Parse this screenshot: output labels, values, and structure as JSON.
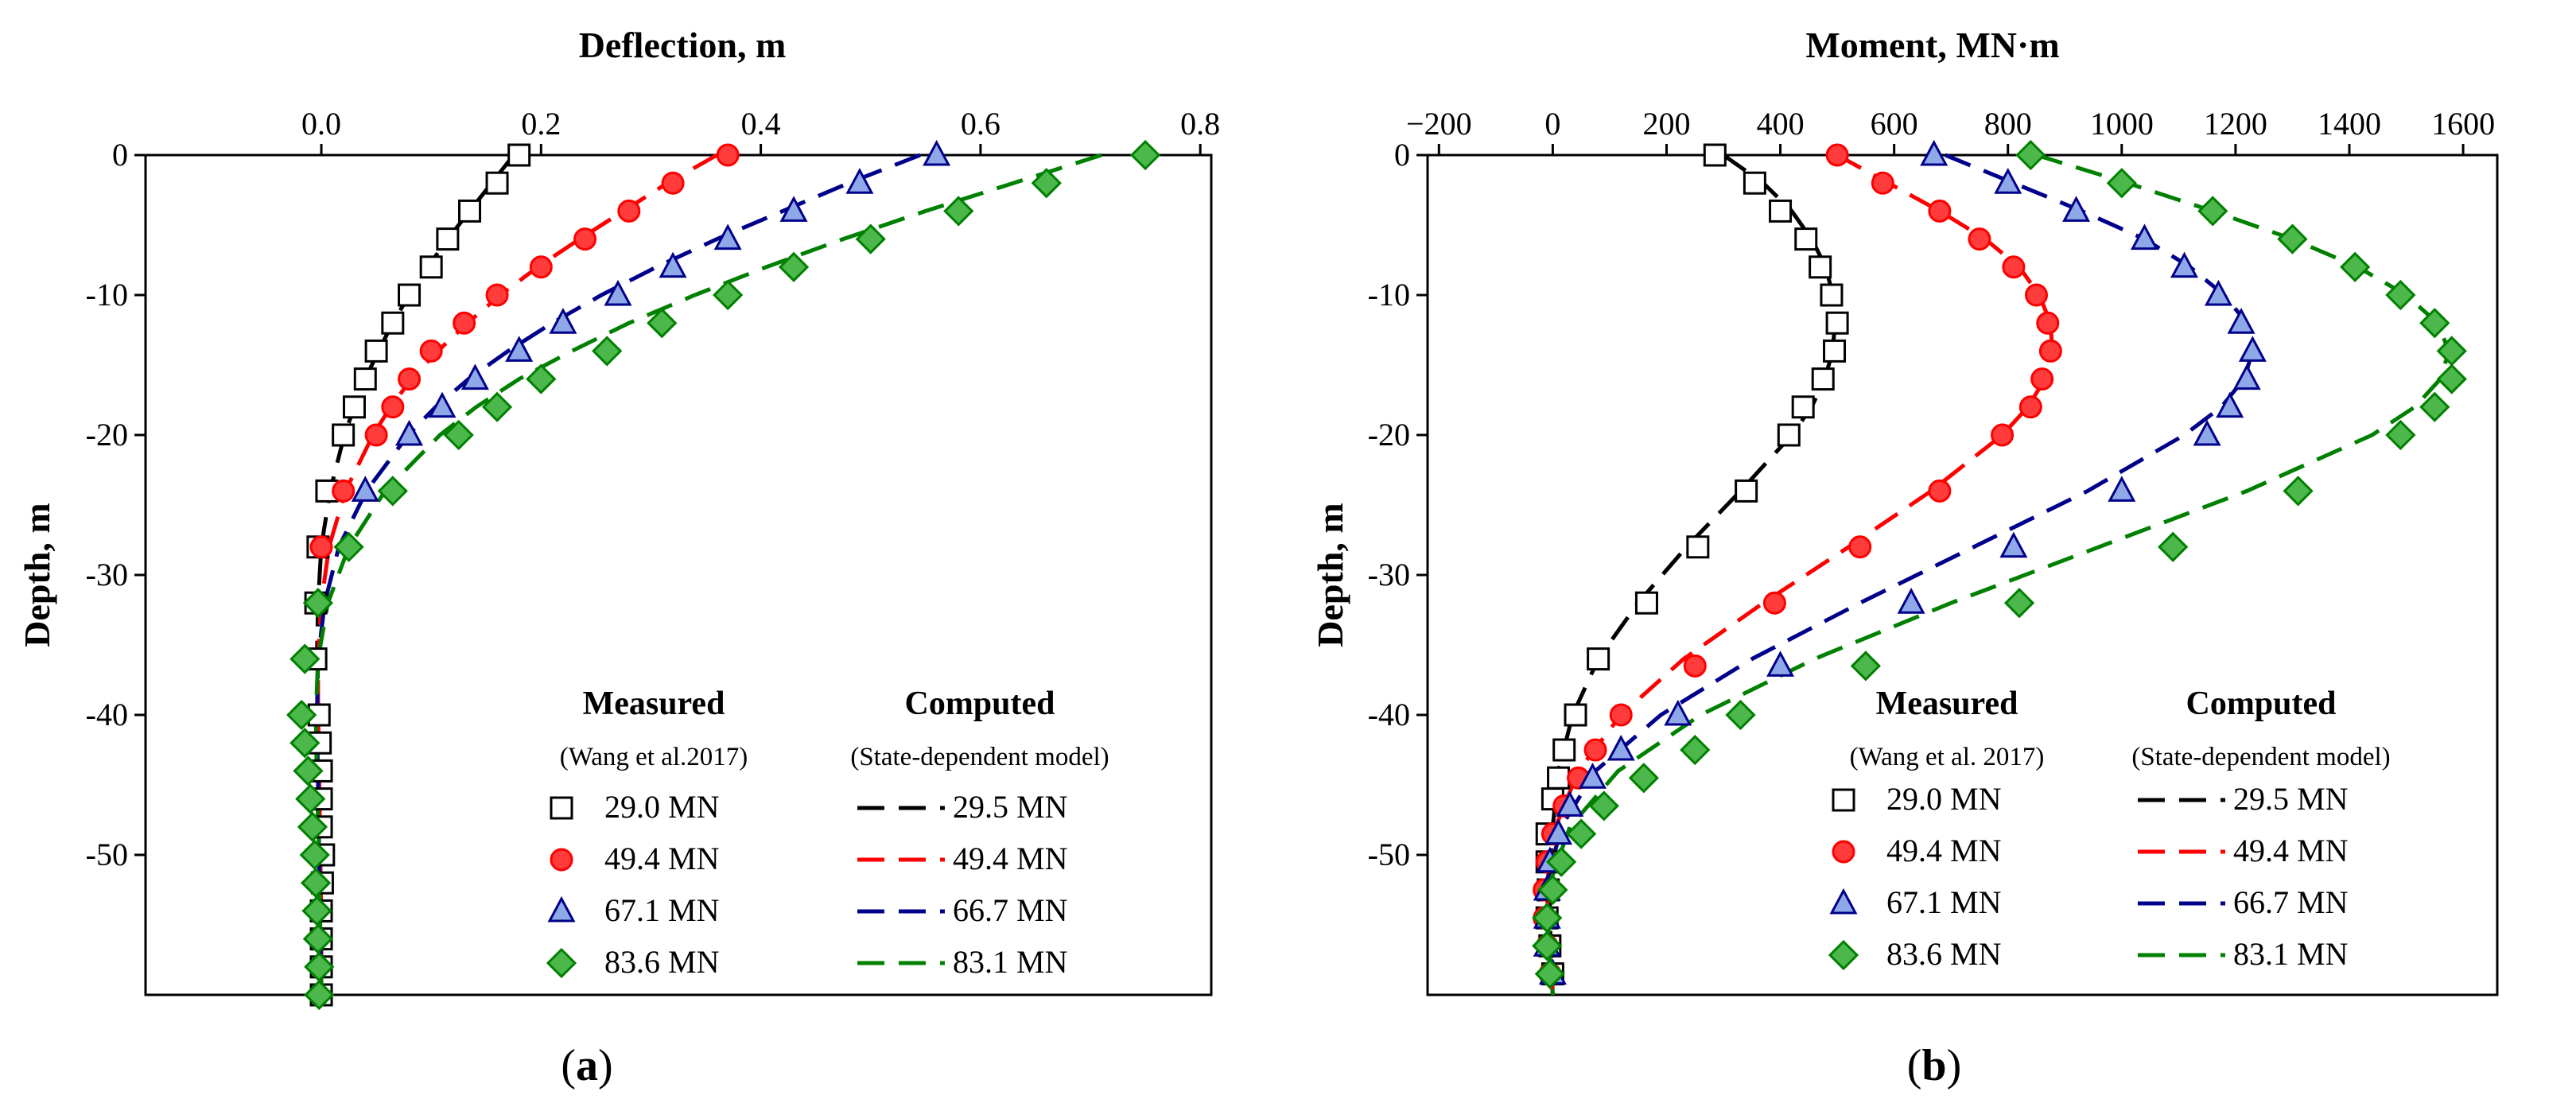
{
  "figure": {
    "panels": [
      {
        "label_open": "(",
        "label_letter": "a",
        "label_close": ")"
      },
      {
        "label_open": "(",
        "label_letter": "b",
        "label_close": ")"
      }
    ]
  },
  "colors": {
    "29": "#000000",
    "49": "#ff0000",
    "67": "#00008b",
    "83": "#008000",
    "fill_29": "#ffffff",
    "fill_49": "#ff3b3b",
    "fill_67": "#8ea8e8",
    "fill_83": "#4cb84c"
  },
  "chart_data": [
    {
      "type": "scatter",
      "title": "Deflection, m",
      "xlabel": "Deflection, m",
      "ylabel": "Depth, m",
      "xlim": [
        -0.16,
        0.81
      ],
      "ylim": [
        -60,
        0
      ],
      "xticks": [
        0.0,
        0.2,
        0.4,
        0.6,
        0.8
      ],
      "xtick_labels": [
        "0.0",
        "0.2",
        "0.4",
        "0.6",
        "0.8"
      ],
      "yticks": [
        0,
        -10,
        -20,
        -30,
        -40,
        -50
      ],
      "ytick_labels": [
        "0",
        "-10",
        "-20",
        "-30",
        "-40",
        "-50"
      ],
      "legend": {
        "measured_title": "Measured",
        "measured_source": "(Wang et al.2017)",
        "computed_title": "Computed",
        "computed_source": "(State-dependent model)"
      },
      "measured": [
        {
          "name": "29.0 MN",
          "marker": "square",
          "color_key": "29",
          "depth": [
            0,
            -2,
            -4,
            -6,
            -8,
            -10,
            -12,
            -14,
            -16,
            -18,
            -20,
            -24,
            -28,
            -32,
            -36,
            -40,
            -42,
            -44,
            -46,
            -48,
            -50,
            -52,
            -54,
            -56,
            -58,
            -60
          ],
          "values": [
            0.18,
            0.16,
            0.135,
            0.115,
            0.1,
            0.08,
            0.065,
            0.05,
            0.04,
            0.03,
            0.02,
            0.005,
            -0.003,
            -0.005,
            -0.005,
            -0.002,
            -0.001,
            0.0,
            0.0,
            0.0,
            0.002,
            0.001,
            0.0,
            0.0,
            0.0,
            0.0
          ]
        },
        {
          "name": "49.4 MN",
          "marker": "circle",
          "color_key": "49",
          "depth": [
            0,
            -2,
            -4,
            -6,
            -8,
            -10,
            -12,
            -14,
            -16,
            -18,
            -20,
            -24,
            -28
          ],
          "values": [
            0.37,
            0.32,
            0.28,
            0.24,
            0.2,
            0.16,
            0.13,
            0.1,
            0.08,
            0.065,
            0.05,
            0.02,
            0.0
          ]
        },
        {
          "name": "67.1 MN",
          "marker": "triangle",
          "color_key": "67",
          "depth": [
            0,
            -2,
            -4,
            -6,
            -8,
            -10,
            -12,
            -14,
            -16,
            -18,
            -20,
            -24
          ],
          "values": [
            0.56,
            0.49,
            0.43,
            0.37,
            0.32,
            0.27,
            0.22,
            0.18,
            0.14,
            0.11,
            0.08,
            0.04
          ]
        },
        {
          "name": "83.6 MN",
          "marker": "diamond",
          "color_key": "83",
          "depth": [
            0,
            -2,
            -4,
            -6,
            -8,
            -10,
            -12,
            -14,
            -16,
            -18,
            -20,
            -24,
            -28,
            -32,
            -36,
            -40,
            -42,
            -44,
            -46,
            -48,
            -50,
            -52,
            -54,
            -56,
            -58,
            -60
          ],
          "values": [
            0.75,
            0.66,
            0.58,
            0.5,
            0.43,
            0.37,
            0.31,
            0.26,
            0.2,
            0.16,
            0.125,
            0.065,
            0.025,
            -0.003,
            -0.015,
            -0.018,
            -0.015,
            -0.012,
            -0.01,
            -0.008,
            -0.006,
            -0.005,
            -0.004,
            -0.003,
            -0.002,
            -0.002
          ]
        }
      ],
      "computed": [
        {
          "name": "29.5 MN",
          "color_key": "29",
          "depth": [
            0,
            -2,
            -4,
            -6,
            -8,
            -10,
            -12,
            -14,
            -16,
            -18,
            -20,
            -24,
            -28,
            -32,
            -36,
            -40,
            -45,
            -50,
            -55,
            -60
          ],
          "values": [
            0.175,
            0.155,
            0.135,
            0.115,
            0.097,
            0.08,
            0.065,
            0.052,
            0.04,
            0.03,
            0.021,
            0.008,
            0.0,
            -0.003,
            -0.004,
            -0.003,
            -0.002,
            -0.001,
            0.0,
            0.0
          ]
        },
        {
          "name": "49.4 MN",
          "color_key": "49",
          "depth": [
            0,
            -2,
            -4,
            -6,
            -8,
            -10,
            -12,
            -14,
            -16,
            -18,
            -20,
            -24,
            -28,
            -32,
            -36,
            -40,
            -45,
            -50,
            -55,
            -60
          ],
          "values": [
            0.36,
            0.315,
            0.275,
            0.235,
            0.197,
            0.163,
            0.133,
            0.106,
            0.082,
            0.063,
            0.047,
            0.022,
            0.007,
            0.0,
            -0.003,
            -0.003,
            -0.002,
            -0.001,
            0.0,
            0.0
          ]
        },
        {
          "name": "66.7 MN",
          "color_key": "67",
          "depth": [
            0,
            -2,
            -4,
            -6,
            -8,
            -10,
            -12,
            -14,
            -16,
            -18,
            -20,
            -24,
            -28,
            -32,
            -36,
            -40,
            -45,
            -50,
            -55,
            -60
          ],
          "values": [
            0.545,
            0.48,
            0.42,
            0.36,
            0.305,
            0.255,
            0.21,
            0.17,
            0.134,
            0.104,
            0.079,
            0.041,
            0.016,
            0.003,
            -0.003,
            -0.004,
            -0.003,
            -0.002,
            -0.001,
            0.0
          ]
        },
        {
          "name": "83.1 MN",
          "color_key": "83",
          "depth": [
            0,
            -2,
            -4,
            -6,
            -8,
            -10,
            -12,
            -14,
            -16,
            -18,
            -20,
            -24,
            -28,
            -32,
            -36,
            -40,
            -45,
            -50,
            -55,
            -60
          ],
          "values": [
            0.71,
            0.63,
            0.55,
            0.475,
            0.405,
            0.34,
            0.28,
            0.228,
            0.18,
            0.141,
            0.108,
            0.058,
            0.025,
            0.006,
            -0.003,
            -0.005,
            -0.004,
            -0.002,
            -0.001,
            0.0
          ]
        }
      ]
    },
    {
      "type": "scatter",
      "title": "Moment, MN·m",
      "xlabel": "Moment, MN·m",
      "ylabel": "Depth, m",
      "xlim": [
        -220,
        1660
      ],
      "ylim": [
        -60,
        0
      ],
      "xticks": [
        -200,
        0,
        200,
        400,
        600,
        800,
        1000,
        1200,
        1400,
        1600
      ],
      "xtick_labels": [
        "−200",
        "0",
        "200",
        "400",
        "600",
        "800",
        "1000",
        "1200",
        "1400",
        "1600"
      ],
      "yticks": [
        0,
        -10,
        -20,
        -30,
        -40,
        -50
      ],
      "ytick_labels": [
        "0",
        "-10",
        "-20",
        "-30",
        "-40",
        "-50"
      ],
      "legend": {
        "measured_title": "Measured",
        "measured_source": "(Wang et al. 2017)",
        "computed_title": "Computed",
        "computed_source": "(State-dependent model)"
      },
      "measured": [
        {
          "name": "29.0 MN",
          "marker": "square",
          "color_key": "29",
          "depth": [
            0,
            -2,
            -4,
            -6,
            -8,
            -10,
            -12,
            -14,
            -16,
            -18,
            -20,
            -24,
            -28,
            -32,
            -36,
            -40,
            -42.5,
            -44.5,
            -46,
            -48.5,
            -50.5,
            -52.5,
            -54.5,
            -56.5,
            -58.5
          ],
          "values": [
            285,
            355,
            400,
            445,
            470,
            490,
            500,
            495,
            475,
            440,
            415,
            340,
            255,
            165,
            80,
            40,
            20,
            10,
            0,
            -10,
            -10,
            -8,
            -10,
            -5,
            0
          ]
        },
        {
          "name": "49.4 MN",
          "marker": "circle",
          "color_key": "49",
          "depth": [
            0,
            -2,
            -4,
            -6,
            -8,
            -10,
            -12,
            -14,
            -16,
            -18,
            -20,
            -24,
            -28,
            -32,
            -36.5,
            -40,
            -42.5,
            -44.5,
            -46.5,
            -48.5,
            -50.5,
            -52.5,
            -54.5,
            -56.5,
            -58.5
          ],
          "values": [
            500,
            580,
            680,
            750,
            810,
            850,
            870,
            875,
            860,
            840,
            790,
            680,
            540,
            390,
            250,
            120,
            75,
            45,
            20,
            0,
            -10,
            -15,
            -15,
            -10,
            -5
          ]
        },
        {
          "name": "67.1 MN",
          "marker": "triangle",
          "color_key": "67",
          "depth": [
            0,
            -2,
            -4,
            -6,
            -8,
            -10,
            -12,
            -14,
            -16,
            -18,
            -20,
            -24,
            -28,
            -32,
            -36.5,
            -40,
            -42.5,
            -44.5,
            -46.5,
            -48.5,
            -50.5,
            -52.5,
            -54.5,
            -56.5,
            -58.5
          ],
          "values": [
            670,
            800,
            920,
            1040,
            1110,
            1170,
            1210,
            1230,
            1220,
            1190,
            1150,
            1000,
            810,
            630,
            400,
            220,
            120,
            70,
            30,
            10,
            -5,
            -10,
            -10,
            -10,
            0
          ]
        },
        {
          "name": "83.6 MN",
          "marker": "diamond",
          "color_key": "83",
          "depth": [
            0,
            -2,
            -4,
            -6,
            -8,
            -10,
            -12,
            -14,
            -16,
            -18,
            -20,
            -24,
            -28,
            -32,
            -36.5,
            -40,
            -42.5,
            -44.5,
            -46.5,
            -48.5,
            -50.5,
            -52.5,
            -54.5,
            -56.5,
            -58.5
          ],
          "values": [
            840,
            1000,
            1160,
            1300,
            1410,
            1490,
            1550,
            1580,
            1580,
            1550,
            1490,
            1310,
            1090,
            820,
            550,
            330,
            250,
            160,
            90,
            50,
            15,
            0,
            -10,
            -10,
            -5
          ]
        }
      ],
      "computed": [
        {
          "name": "29.5 MN",
          "color_key": "29",
          "depth": [
            0,
            -2,
            -4,
            -6,
            -8,
            -10,
            -12,
            -14,
            -16,
            -18,
            -20,
            -24,
            -28,
            -32,
            -36,
            -40,
            -44,
            -48,
            -52,
            -56,
            -60
          ],
          "values": [
            300,
            370,
            420,
            455,
            480,
            492,
            496,
            492,
            478,
            455,
            420,
            330,
            235,
            150,
            80,
            35,
            10,
            0,
            -6,
            -4,
            0
          ]
        },
        {
          "name": "49.4 MN",
          "color_key": "49",
          "depth": [
            0,
            -2,
            -4,
            -6,
            -8,
            -10,
            -12,
            -14,
            -16,
            -18,
            -20,
            -24,
            -28,
            -32,
            -36,
            -40,
            -44,
            -48,
            -52,
            -56,
            -60
          ],
          "values": [
            500,
            590,
            680,
            760,
            820,
            855,
            875,
            878,
            865,
            835,
            790,
            665,
            520,
            370,
            230,
            120,
            45,
            5,
            -10,
            -8,
            0
          ]
        },
        {
          "name": "66.7 MN",
          "color_key": "67",
          "depth": [
            0,
            -2,
            -4,
            -6,
            -8,
            -10,
            -12,
            -14,
            -16,
            -18,
            -20,
            -24,
            -28,
            -32,
            -36,
            -40,
            -44,
            -48,
            -52,
            -56,
            -60
          ],
          "values": [
            690,
            810,
            930,
            1040,
            1120,
            1180,
            1220,
            1230,
            1215,
            1175,
            1110,
            940,
            740,
            540,
            350,
            190,
            75,
            15,
            -10,
            -8,
            0
          ]
        },
        {
          "name": "83.1 MN",
          "color_key": "83",
          "depth": [
            0,
            -2,
            -4,
            -6,
            -8,
            -10,
            -12,
            -14,
            -16,
            -18,
            -20,
            -24,
            -28,
            -32,
            -36,
            -40,
            -44,
            -48,
            -52,
            -56,
            -60
          ],
          "values": [
            850,
            1010,
            1160,
            1300,
            1415,
            1500,
            1555,
            1575,
            1560,
            1515,
            1440,
            1220,
            960,
            700,
            460,
            260,
            115,
            30,
            -5,
            -8,
            0
          ]
        }
      ]
    }
  ]
}
